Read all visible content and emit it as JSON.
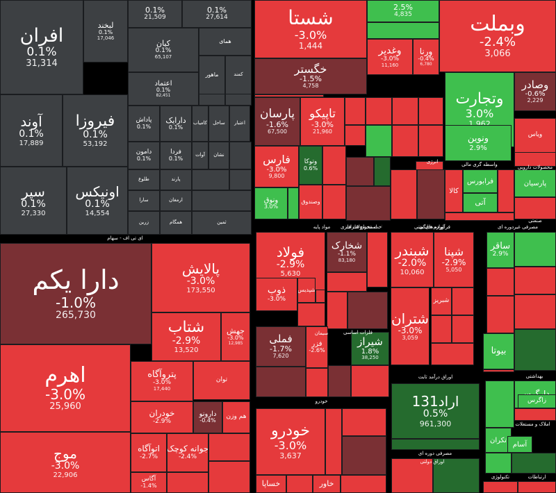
{
  "chart_data": {
    "type": "treemap",
    "colors": {
      "neutral": "#3d4043",
      "red": "#e53a3c",
      "red_dark": "#7a3034",
      "green": "#3fbf4e",
      "green_dark": "#256b2e",
      "background": "#000000"
    },
    "sectors": [
      {
        "name": "ای تی اف - سهام"
      },
      {
        "name": "مواد پایه"
      },
      {
        "name": "لوازم خانگی"
      },
      {
        "name": "استخراج فلزات"
      },
      {
        "name": "فرآورده های نفتی"
      },
      {
        "name": "واسطه گری مالی"
      },
      {
        "name": "خودرو"
      },
      {
        "name": "محصولات دارویی"
      },
      {
        "name": "اوراق درآمد ثابت"
      },
      {
        "name": "مالی"
      },
      {
        "name": "انرژی"
      },
      {
        "name": "صنعتی"
      },
      {
        "name": "بهداشتی"
      },
      {
        "name": "املاک و مستغلات"
      },
      {
        "name": "تکنولوژی"
      },
      {
        "name": "ارتباطات"
      },
      {
        "name": "اوراق دولتی"
      },
      {
        "name": "مصرفی دوره ای"
      },
      {
        "name": "مصرفی غیردوره ای"
      },
      {
        "name": "سیمان"
      },
      {
        "name": "فلزات اساسی"
      },
      {
        "name": "ساخت محصولات فلزی"
      }
    ],
    "tiles": [
      {
        "symbol": "افران",
        "change": "0.1%",
        "value": "31,314",
        "shade": "neutral"
      },
      {
        "symbol": "لبخند",
        "change": "0.1%",
        "value": "17,046",
        "shade": "neutral"
      },
      {
        "symbol": "",
        "change": "0.1%",
        "value": "21,509",
        "shade": "neutral"
      },
      {
        "symbol": "",
        "change": "0.1%",
        "value": "27,614",
        "shade": "neutral"
      },
      {
        "symbol": "کیان",
        "change": "0.1%",
        "value": "65,107",
        "shade": "neutral"
      },
      {
        "symbol": "همای",
        "change": "",
        "value": "",
        "shade": "neutral"
      },
      {
        "symbol": "اعتماد",
        "change": "0.1%",
        "value": "82,451",
        "shade": "neutral"
      },
      {
        "symbol": "ماهور",
        "change": "",
        "value": "",
        "shade": "neutral"
      },
      {
        "symbol": "کمند",
        "change": "",
        "value": "",
        "shade": "neutral"
      },
      {
        "symbol": "آوند",
        "change": "0.1%",
        "value": "17,889",
        "shade": "neutral"
      },
      {
        "symbol": "فیروزا",
        "change": "0.1%",
        "value": "53,192",
        "shade": "neutral"
      },
      {
        "symbol": "پاداش",
        "change": "0.1%",
        "value": "",
        "shade": "neutral"
      },
      {
        "symbol": "دارایک",
        "change": "0.1%",
        "value": "",
        "shade": "neutral"
      },
      {
        "symbol": "کامیاب",
        "change": "",
        "value": "",
        "shade": "neutral"
      },
      {
        "symbol": "ساحل",
        "change": "",
        "value": "",
        "shade": "neutral"
      },
      {
        "symbol": "اعتبار",
        "change": "",
        "value": "",
        "shade": "neutral"
      },
      {
        "symbol": "دامون",
        "change": "0.1%",
        "value": "",
        "shade": "neutral"
      },
      {
        "symbol": "فردا",
        "change": "0.1%",
        "value": "",
        "shade": "neutral"
      },
      {
        "symbol": "آوات",
        "change": "",
        "value": "",
        "shade": "neutral"
      },
      {
        "symbol": "نشان",
        "change": "",
        "value": "",
        "shade": "neutral"
      },
      {
        "symbol": "سپر",
        "change": "0.1%",
        "value": "27,330",
        "shade": "neutral"
      },
      {
        "symbol": "اونیکس",
        "change": "0.1%",
        "value": "14,554",
        "shade": "neutral"
      },
      {
        "symbol": "طلوع",
        "change": "",
        "value": "",
        "shade": "neutral"
      },
      {
        "symbol": "پارند",
        "change": "",
        "value": "",
        "shade": "neutral"
      },
      {
        "symbol": "سارا",
        "change": "",
        "value": "",
        "shade": "neutral"
      },
      {
        "symbol": "ارمغان",
        "change": "",
        "value": "",
        "shade": "neutral"
      },
      {
        "symbol": "زرین",
        "change": "",
        "value": "",
        "shade": "neutral"
      },
      {
        "symbol": "همگام",
        "change": "",
        "value": "",
        "shade": "neutral"
      },
      {
        "symbol": "ثمین",
        "change": "",
        "value": "",
        "shade": "neutral"
      },
      {
        "symbol": "دارا یکم",
        "change": "-1.0%",
        "value": "265,730",
        "shade": "red_dark"
      },
      {
        "symbol": "پالایش",
        "change": "-3.0%",
        "value": "173,550",
        "shade": "red"
      },
      {
        "symbol": "شتاب",
        "change": "-2.9%",
        "value": "13,520",
        "shade": "red"
      },
      {
        "symbol": "جهش",
        "change": "-3.0%",
        "value": "12,985",
        "shade": "red"
      },
      {
        "symbol": "اهرم",
        "change": "-3.0%",
        "value": "25,960",
        "shade": "red"
      },
      {
        "symbol": "پتروآگاه",
        "change": "-3.0%",
        "value": "17,440",
        "shade": "red"
      },
      {
        "symbol": "توان",
        "change": "",
        "value": "",
        "shade": "red"
      },
      {
        "symbol": "خودران",
        "change": "-2.9%",
        "value": "",
        "shade": "red"
      },
      {
        "symbol": "دارونو",
        "change": "-0.4%",
        "value": "",
        "shade": "red_dark"
      },
      {
        "symbol": "هم وزن",
        "change": "",
        "value": "",
        "shade": "red"
      },
      {
        "symbol": "موج",
        "change": "-3.0%",
        "value": "22,906",
        "shade": "red"
      },
      {
        "symbol": "اتوآگاه",
        "change": "-2.7%",
        "value": "",
        "shade": "red"
      },
      {
        "symbol": "جوانه کوچک",
        "change": "-2.4%",
        "value": "",
        "shade": "red"
      },
      {
        "symbol": "آگاس",
        "change": "-1.4%",
        "value": "",
        "shade": "red"
      },
      {
        "symbol": "شستا",
        "change": "-3.0%",
        "value": "1,444",
        "shade": "red"
      },
      {
        "symbol": "",
        "change": "2.5%",
        "value": "4,835",
        "shade": "green"
      },
      {
        "symbol": "وبملت",
        "change": "-2.4%",
        "value": "3,066",
        "shade": "red"
      },
      {
        "symbol": "وغدیر",
        "change": "-3.0%",
        "value": "11,160",
        "shade": "red"
      },
      {
        "symbol": "ورنا",
        "change": "-0.4%",
        "value": "6,780",
        "shade": "red"
      },
      {
        "symbol": "خگستر",
        "change": "-1.5%",
        "value": "4,758",
        "shade": "red_dark"
      },
      {
        "symbol": "وتجارت",
        "change": "3.0%",
        "value": "1,962",
        "shade": "green"
      },
      {
        "symbol": "وصادر",
        "change": "-0.6%",
        "value": "2,229",
        "shade": "red_dark"
      },
      {
        "symbol": "پارسان",
        "change": "-1.6%",
        "value": "67,500",
        "shade": "red_dark"
      },
      {
        "symbol": "تاپیکو",
        "change": "-3.0%",
        "value": "21,960",
        "shade": "red"
      },
      {
        "symbol": "ونوین",
        "change": "2.9%",
        "value": "",
        "shade": "green"
      },
      {
        "symbol": "ویاس",
        "change": "",
        "value": "",
        "shade": "red"
      },
      {
        "symbol": "فارس",
        "change": "-3.0%",
        "value": "9,800",
        "shade": "red"
      },
      {
        "symbol": "وتوکا",
        "change": "0.6%",
        "value": "",
        "shade": "green_dark"
      },
      {
        "symbol": "ونوق",
        "change": "3.0%",
        "value": "",
        "shade": "green"
      },
      {
        "symbol": "وصندوق",
        "change": "",
        "value": "",
        "shade": "red"
      },
      {
        "symbol": "کالا",
        "change": "",
        "value": "",
        "shade": "red"
      },
      {
        "symbol": "فرابورس",
        "change": "",
        "value": "",
        "shade": "green"
      },
      {
        "symbol": "پارسیان",
        "change": "",
        "value": "",
        "shade": "green"
      },
      {
        "symbol": "آتی",
        "change": "",
        "value": "",
        "shade": "green"
      },
      {
        "symbol": "فولاد",
        "change": "-2.9%",
        "value": "5,630",
        "shade": "red"
      },
      {
        "symbol": "شخارک",
        "change": "-1.1%",
        "value": "83,180",
        "shade": "red_dark"
      },
      {
        "symbol": "شبندر",
        "change": "-2.0%",
        "value": "10,060",
        "shade": "red"
      },
      {
        "symbol": "شپنا",
        "change": "-2.9%",
        "value": "5,050",
        "shade": "red"
      },
      {
        "symbol": "ساقر",
        "change": "2.9%",
        "value": "",
        "shade": "green"
      },
      {
        "symbol": "ذوب",
        "change": "-3.0%",
        "value": "",
        "shade": "red"
      },
      {
        "symbol": "شپدیس",
        "change": "",
        "value": "",
        "shade": "red"
      },
      {
        "symbol": "شتران",
        "change": "-3.0%",
        "value": "3,059",
        "shade": "red"
      },
      {
        "symbol": "شبریز",
        "change": "",
        "value": "",
        "shade": "red"
      },
      {
        "symbol": "فملی",
        "change": "-1.7%",
        "value": "7,620",
        "shade": "red_dark"
      },
      {
        "symbol": "فزر",
        "change": "-2.6%",
        "value": "",
        "shade": "red"
      },
      {
        "symbol": "شیراز",
        "change": "1.8%",
        "value": "38,250",
        "shade": "green_dark"
      },
      {
        "symbol": "بیوتا",
        "change": "",
        "value": "",
        "shade": "green"
      },
      {
        "symbol": "اراد131",
        "change": "0.5%",
        "value": "961,300",
        "shade": "green_dark"
      },
      {
        "symbol": "خودرو",
        "change": "-3.0%",
        "value": "3,637",
        "shade": "red"
      },
      {
        "symbol": "خساپا",
        "change": "",
        "value": "",
        "shade": "red"
      },
      {
        "symbol": "خاور",
        "change": "",
        "value": "",
        "shade": "red"
      },
      {
        "symbol": "دارگرس",
        "change": "",
        "value": "",
        "shade": "green"
      },
      {
        "symbol": "تکران",
        "change": "",
        "value": "",
        "shade": "green"
      },
      {
        "symbol": "آسام",
        "change": "",
        "value": "",
        "shade": "green"
      },
      {
        "symbol": "زاگرس",
        "change": "",
        "value": "",
        "shade": "green"
      }
    ]
  }
}
